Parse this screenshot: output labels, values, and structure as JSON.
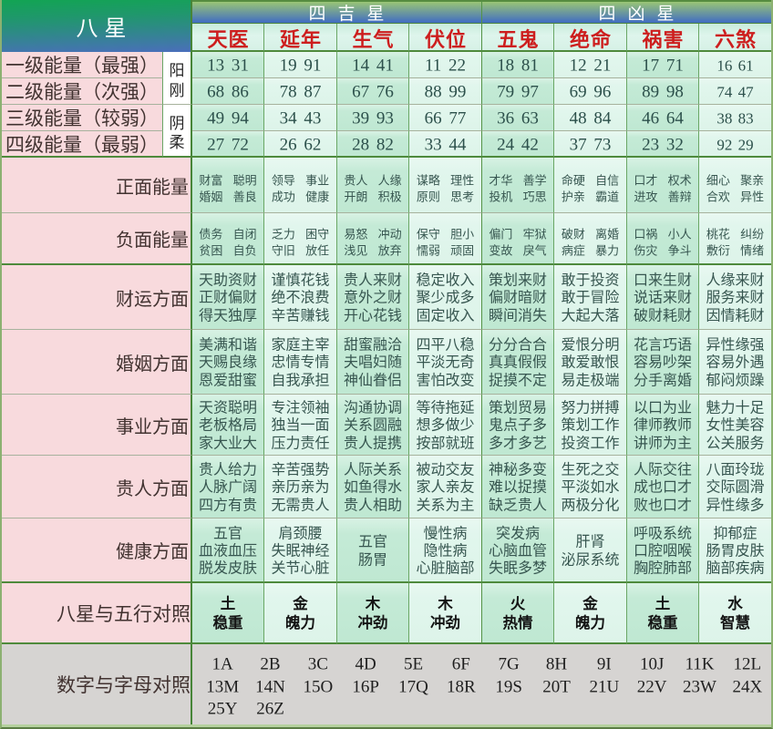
{
  "header": {
    "corner": "八星",
    "good_group": "四吉星",
    "bad_group": "四凶星"
  },
  "levels": [
    {
      "label": "一级能量（最强）"
    },
    {
      "label": "二级能量（次强）"
    },
    {
      "label": "三级能量（较弱）"
    },
    {
      "label": "四级能量（最弱）"
    }
  ],
  "polarity": [
    {
      "label": "阳刚"
    },
    {
      "label": "阴柔"
    }
  ],
  "rows": {
    "positive": "正面能量",
    "negative": "负面能量",
    "wealth": "财运方面",
    "marriage": "婚姻方面",
    "career": "事业方面",
    "benefactor": "贵人方面",
    "health": "健康方面",
    "element": "八星与五行对照",
    "letters": "数字与字母对照"
  },
  "stars": [
    {
      "key": "tianyi",
      "name": "天医",
      "numbers": [
        "13 31",
        "68 86",
        "49 94",
        "27 72"
      ],
      "positive": [
        "财富 聪明",
        "婚姻 善良"
      ],
      "negative": [
        "债务 自闭",
        "贫困 自负"
      ],
      "wealth": [
        "天助资财",
        "正财偏财",
        "得天独厚"
      ],
      "marriage": [
        "美满和谐",
        "天赐良缘",
        "恩爱甜蜜"
      ],
      "career": [
        "天资聪明",
        "老板格局",
        "家大业大"
      ],
      "benefactor": [
        "贵人给力",
        "人脉广阔",
        "四方有贵"
      ],
      "health": [
        "五官",
        "血液血压",
        "脱发皮肤"
      ],
      "element": [
        "土",
        "稳重"
      ]
    },
    {
      "key": "yannian",
      "name": "延年",
      "numbers": [
        "19 91",
        "78 87",
        "34 43",
        "26 62"
      ],
      "positive": [
        "领导 事业",
        "成功 健康"
      ],
      "negative": [
        "乏力 困守",
        "守旧 放任"
      ],
      "wealth": [
        "谨慎花钱",
        "绝不浪费",
        "辛苦赚钱"
      ],
      "marriage": [
        "家庭主宰",
        "忠情专情",
        "自我承担"
      ],
      "career": [
        "专注领袖",
        "独当一面",
        "压力责任"
      ],
      "benefactor": [
        "辛苦强势",
        "亲历亲为",
        "无需贵人"
      ],
      "health": [
        "肩颈腰",
        "失眠神经",
        "关节心脏"
      ],
      "element": [
        "金",
        "魄力"
      ]
    },
    {
      "key": "shengqi",
      "name": "生气",
      "numbers": [
        "14 41",
        "67 76",
        "39 93",
        "28 82"
      ],
      "positive": [
        "贵人 人缘",
        "开朗 积极"
      ],
      "negative": [
        "易怒 冲动",
        "浅见 放弃"
      ],
      "wealth": [
        "贵人来财",
        "意外之财",
        "开心花钱"
      ],
      "marriage": [
        "甜蜜融洽",
        "夫唱妇随",
        "神仙眷侣"
      ],
      "career": [
        "沟通协调",
        "关系圆融",
        "贵人提携"
      ],
      "benefactor": [
        "人际关系",
        "如鱼得水",
        "贵人相助"
      ],
      "health": [
        "五官",
        "肠胃"
      ],
      "element": [
        "木",
        "冲劲"
      ]
    },
    {
      "key": "fuwei",
      "name": "伏位",
      "numbers": [
        "11 22",
        "88 99",
        "66 77",
        "33 44"
      ],
      "positive": [
        "谋略 理性",
        "原则 思考"
      ],
      "negative": [
        "保守 胆小",
        "懦弱 顽固"
      ],
      "wealth": [
        "稳定收入",
        "聚少成多",
        "固定收入"
      ],
      "marriage": [
        "四平八稳",
        "平淡无奇",
        "害怕改变"
      ],
      "career": [
        "等待拖延",
        "想多做少",
        "按部就班"
      ],
      "benefactor": [
        "被动交友",
        "家人亲友",
        "关系为主"
      ],
      "health": [
        "慢性病",
        "隐性病",
        "心脏脑部"
      ],
      "element": [
        "木",
        "冲劲"
      ]
    },
    {
      "key": "wugui",
      "name": "五鬼",
      "numbers": [
        "18 81",
        "79 97",
        "36 63",
        "24 42"
      ],
      "positive": [
        "才华 善学",
        "投机 巧思"
      ],
      "negative": [
        "偏门 牢狱",
        "变故 戾气"
      ],
      "wealth": [
        "策划来财",
        "偏财暗财",
        "瞬间消失"
      ],
      "marriage": [
        "分分合合",
        "真真假假",
        "捉摸不定"
      ],
      "career": [
        "策划贸易",
        "鬼点子多",
        "多才多艺"
      ],
      "benefactor": [
        "神秘多变",
        "难以捉摸",
        "缺乏贵人"
      ],
      "health": [
        "突发病",
        "心脑血管",
        "失眠多梦"
      ],
      "element": [
        "火",
        "热情"
      ]
    },
    {
      "key": "jueming",
      "name": "绝命",
      "numbers": [
        "12 21",
        "69 96",
        "48 84",
        "37 73"
      ],
      "positive": [
        "命硬 自信",
        "护亲 霸道"
      ],
      "negative": [
        "破财 离婚",
        "病症 暴力"
      ],
      "wealth": [
        "敢于投资",
        "敢于冒险",
        "大起大落"
      ],
      "marriage": [
        "爱恨分明",
        "敢爱敢恨",
        "易走极端"
      ],
      "career": [
        "努力拼搏",
        "策划工作",
        "投资工作"
      ],
      "benefactor": [
        "生死之交",
        "平淡如水",
        "两极分化"
      ],
      "health": [
        "肝肾",
        "泌尿系统"
      ],
      "element": [
        "金",
        "魄力"
      ]
    },
    {
      "key": "huohai",
      "name": "祸害",
      "numbers": [
        "17 71",
        "89 98",
        "46 64",
        "23 32"
      ],
      "positive": [
        "口才 权术",
        "进攻 善辩"
      ],
      "negative": [
        "口祸 小人",
        "伤灾 争斗"
      ],
      "wealth": [
        "口来生财",
        "说话来财",
        "破财耗财"
      ],
      "marriage": [
        "花言巧语",
        "容易吵架",
        "分手离婚"
      ],
      "career": [
        "以口为业",
        "律师教师",
        "讲师为主"
      ],
      "benefactor": [
        "人际交往",
        "成也口才",
        "败也口才"
      ],
      "health": [
        "呼吸系统",
        "口腔咽喉",
        "胸腔肺部"
      ],
      "element": [
        "土",
        "稳重"
      ]
    },
    {
      "key": "liusha",
      "name": "六煞",
      "numbers": [
        "16 61",
        "74 47",
        "38 83",
        "92 29"
      ],
      "positive": [
        "细心 聚亲",
        "合欢 异性"
      ],
      "negative": [
        "桃花 纠纷",
        "敷衍 情绪"
      ],
      "wealth": [
        "人缘来财",
        "服务来财",
        "因情耗财"
      ],
      "marriage": [
        "异性缘强",
        "容易外遇",
        "郁闷烦躁"
      ],
      "career": [
        "魅力十足",
        "女性美容",
        "公关服务"
      ],
      "benefactor": [
        "八面玲珑",
        "交际圆滑",
        "异性缘多"
      ],
      "health": [
        "抑郁症",
        "肠胃皮肤",
        "脑部疾病"
      ],
      "element": [
        "水",
        "智慧"
      ]
    }
  ],
  "letters": {
    "items": [
      "1A",
      "2B",
      "3C",
      "4D",
      "5E",
      "6F",
      "7G",
      "8H",
      "9I",
      "10J",
      "11K",
      "12L",
      "13M",
      "14N",
      "15O",
      "16P",
      "17Q",
      "18R",
      "19S",
      "20T",
      "21U",
      "22V",
      "23W",
      "24X",
      "25Y",
      "26Z"
    ]
  },
  "colors": {
    "header_green": "#12a551",
    "header_blue": "#4b6ec0",
    "band_green": "#9ac675",
    "band_blue": "#4470c0",
    "star_name_red": "#cd1e1e",
    "label_pink": "#f8dadd",
    "mint_dark": "#bee8d2",
    "mint_light": "#dff5eb",
    "letters_gray": "#d6d4d2",
    "grid_green": "#6ea968",
    "section_green": "#4e8a3c"
  }
}
